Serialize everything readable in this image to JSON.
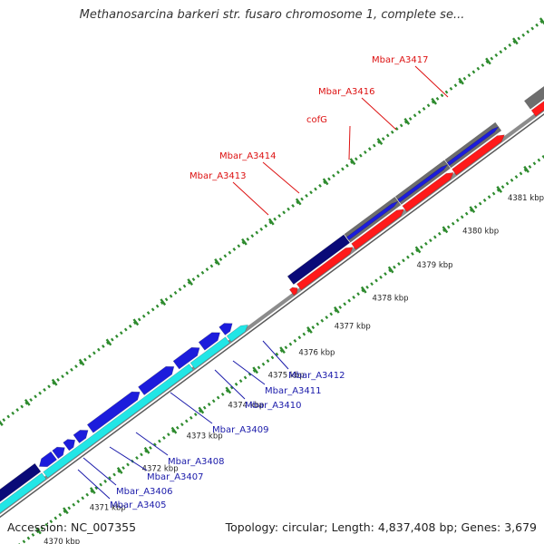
{
  "title": "Methanosarcina barkeri str. fusaro chromosome 1, complete se...",
  "footer": {
    "accession": "Accession: NC_007355",
    "summary": "Topology: circular; Length: 4,837,408 bp; Genes: 3,679"
  },
  "colors": {
    "forward_gene": "#1c1cdc",
    "forward_gene_dark": "#0a0a78",
    "reverse_gene": "#ff1a1a",
    "cyan_gene": "#22e6e6",
    "grey_gene": "#6e6e6e",
    "orange_gene": "#ff9a1a",
    "backbone": "#8c8c8c",
    "tick": "#2e8b2e",
    "label_red": "#dd1111",
    "label_blue": "#1a1aaa"
  },
  "kbp_ticks": [
    "4370 kbp",
    "4371 kbp",
    "4372 kbp",
    "4373 kbp",
    "4374 kbp",
    "4375 kbp",
    "4376 kbp",
    "4377 kbp",
    "4378 kbp",
    "4379 kbp",
    "4380 kbp",
    "4381 kbp"
  ],
  "gene_labels_top": [
    "Mbar_A3413",
    "Mbar_A3414",
    "cofG",
    "Mbar_A3416",
    "Mbar_A3417"
  ],
  "gene_labels_bottom": [
    "Mbar_A3405",
    "Mbar_A3406",
    "Mbar_A3407",
    "Mbar_A3408",
    "Mbar_A3409",
    "Mbar_A3410",
    "Mbar_A3411",
    "Mbar_A3412"
  ]
}
